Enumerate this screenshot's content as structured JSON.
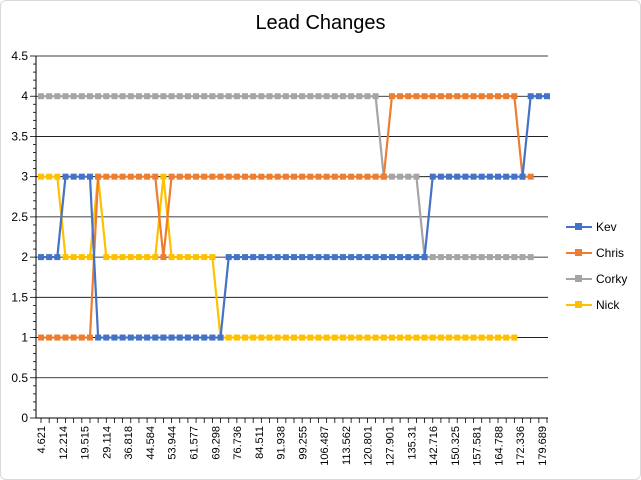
{
  "chart_data": {
    "type": "line",
    "title": "Lead Changes",
    "xlabel": "",
    "ylabel": "",
    "ylim": [
      0,
      4.5
    ],
    "yticks": [
      "0",
      "0.5",
      "1",
      "1.5",
      "2",
      "2.5",
      "3",
      "3.5",
      "4",
      "4.5"
    ],
    "x_tick_labels": [
      "4.621",
      "12.214",
      "19.515",
      "29.114",
      "36.818",
      "44.584",
      "53.944",
      "61.577",
      "69.298",
      "76.736",
      "84.511",
      "91.938",
      "99.255",
      "106.487",
      "113.562",
      "120.801",
      "127.901",
      "135.31",
      "142.716",
      "150.325",
      "157.581",
      "164.788",
      "172.336",
      "179.689"
    ],
    "grid": "horizontal",
    "legend_position": "right",
    "series": [
      {
        "name": "Kev",
        "color": "#4472C4",
        "values": [
          2,
          2,
          2,
          3,
          3,
          3,
          3,
          1,
          1,
          1,
          1,
          1,
          1,
          1,
          1,
          1,
          1,
          1,
          1,
          1,
          1,
          1,
          1,
          2,
          2,
          2,
          2,
          2,
          2,
          2,
          2,
          2,
          2,
          2,
          2,
          2,
          2,
          2,
          2,
          2,
          2,
          2,
          2,
          2,
          2,
          2,
          2,
          2,
          3,
          3,
          3,
          3,
          3,
          3,
          3,
          3,
          3,
          3,
          3,
          3,
          4,
          4,
          4
        ]
      },
      {
        "name": "Chris",
        "color": "#ED7D31",
        "values": [
          1,
          1,
          1,
          1,
          1,
          1,
          1,
          3,
          3,
          3,
          3,
          3,
          3,
          3,
          3,
          2,
          3,
          3,
          3,
          3,
          3,
          3,
          3,
          3,
          3,
          3,
          3,
          3,
          3,
          3,
          3,
          3,
          3,
          3,
          3,
          3,
          3,
          3,
          3,
          3,
          3,
          3,
          3,
          4,
          4,
          4,
          4,
          4,
          4,
          4,
          4,
          4,
          4,
          4,
          4,
          4,
          4,
          4,
          4,
          3,
          3
        ]
      },
      {
        "name": "Corky",
        "color": "#A5A5A5",
        "values": [
          4,
          4,
          4,
          4,
          4,
          4,
          4,
          4,
          4,
          4,
          4,
          4,
          4,
          4,
          4,
          4,
          4,
          4,
          4,
          4,
          4,
          4,
          4,
          4,
          4,
          4,
          4,
          4,
          4,
          4,
          4,
          4,
          4,
          4,
          4,
          4,
          4,
          4,
          4,
          4,
          4,
          4,
          3,
          3,
          3,
          3,
          3,
          2,
          2,
          2,
          2,
          2,
          2,
          2,
          2,
          2,
          2,
          2,
          2,
          2,
          2
        ]
      },
      {
        "name": "Nick",
        "color": "#FFC000",
        "values": [
          3,
          3,
          3,
          2,
          2,
          2,
          2,
          3,
          2,
          2,
          2,
          2,
          2,
          2,
          2,
          3,
          2,
          2,
          2,
          2,
          2,
          2,
          1,
          1,
          1,
          1,
          1,
          1,
          1,
          1,
          1,
          1,
          1,
          1,
          1,
          1,
          1,
          1,
          1,
          1,
          1,
          1,
          1,
          1,
          1,
          1,
          1,
          1,
          1,
          1,
          1,
          1,
          1,
          1,
          1,
          1,
          1,
          1,
          1
        ]
      }
    ]
  }
}
